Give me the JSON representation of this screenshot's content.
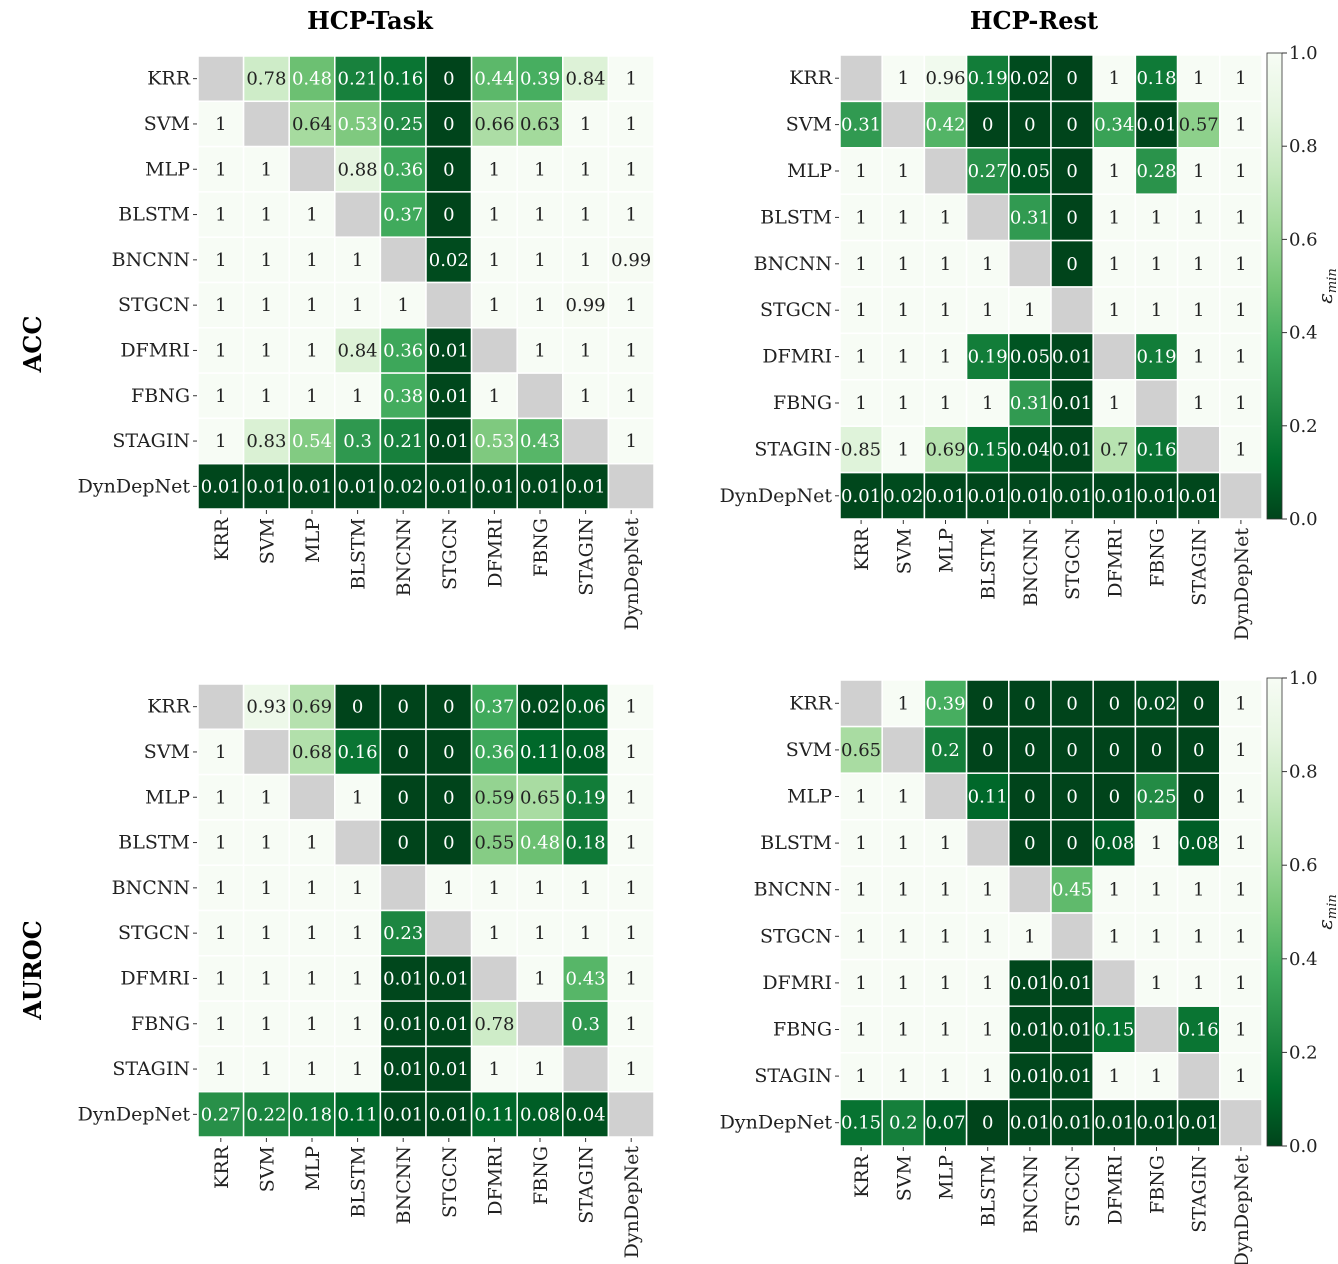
{
  "column_titles": [
    "HCP-Task",
    "HCP-Rest"
  ],
  "row_titles": [
    "ACC",
    "AUROC"
  ],
  "colorbar": {
    "label": "ε",
    "label_subscript": "min",
    "ticks": [
      "0.0",
      "0.2",
      "0.4",
      "0.6",
      "0.8",
      "1.0"
    ],
    "low_color": "#00441b",
    "high_color": "#f7fcf5"
  },
  "diagonal_color": "#d0d0d0",
  "chart_data": [
    {
      "type": "heatmap",
      "title": "",
      "column": "HCP-Task",
      "row": "ACC",
      "labels": [
        "KRR",
        "SVM",
        "MLP",
        "BLSTM",
        "BNCNN",
        "STGCN",
        "DFMRI",
        "FBNG",
        "STAGIN",
        "DynDepNet"
      ],
      "zlim": [
        0,
        1
      ],
      "values": [
        [
          null,
          0.78,
          0.48,
          0.21,
          0.16,
          0,
          0.44,
          0.39,
          0.84,
          1
        ],
        [
          1,
          null,
          0.64,
          0.53,
          0.25,
          0,
          0.66,
          0.63,
          1,
          1
        ],
        [
          1,
          1,
          null,
          0.88,
          0.36,
          0,
          1,
          1,
          1,
          1
        ],
        [
          1,
          1,
          1,
          null,
          0.37,
          0,
          1,
          1,
          1,
          1
        ],
        [
          1,
          1,
          1,
          1,
          null,
          0.02,
          1,
          1,
          1,
          0.99
        ],
        [
          1,
          1,
          1,
          1,
          1,
          null,
          1,
          1,
          0.99,
          1
        ],
        [
          1,
          1,
          1,
          0.84,
          0.36,
          0.01,
          null,
          1,
          1,
          1
        ],
        [
          1,
          1,
          1,
          1,
          0.38,
          0.01,
          1,
          null,
          1,
          1
        ],
        [
          1,
          0.83,
          0.54,
          0.3,
          0.21,
          0.01,
          0.53,
          0.43,
          null,
          1
        ],
        [
          0.01,
          0.01,
          0.01,
          0.01,
          0.02,
          0.01,
          0.01,
          0.01,
          0.01,
          null
        ]
      ]
    },
    {
      "type": "heatmap",
      "title": "",
      "column": "HCP-Rest",
      "row": "ACC",
      "labels": [
        "KRR",
        "SVM",
        "MLP",
        "BLSTM",
        "BNCNN",
        "STGCN",
        "DFMRI",
        "FBNG",
        "STAGIN",
        "DynDepNet"
      ],
      "zlim": [
        0,
        1
      ],
      "colorbar": true,
      "values": [
        [
          null,
          1,
          0.96,
          0.19,
          0.02,
          0,
          1,
          0.18,
          1,
          1
        ],
        [
          0.31,
          null,
          0.42,
          0,
          0,
          0,
          0.34,
          0.01,
          0.57,
          1
        ],
        [
          1,
          1,
          null,
          0.27,
          0.05,
          0,
          1,
          0.28,
          1,
          1
        ],
        [
          1,
          1,
          1,
          null,
          0.31,
          0,
          1,
          1,
          1,
          1
        ],
        [
          1,
          1,
          1,
          1,
          null,
          0,
          1,
          1,
          1,
          1
        ],
        [
          1,
          1,
          1,
          1,
          1,
          null,
          1,
          1,
          1,
          1
        ],
        [
          1,
          1,
          1,
          0.19,
          0.05,
          0.01,
          null,
          0.19,
          1,
          1
        ],
        [
          1,
          1,
          1,
          1,
          0.31,
          0.01,
          1,
          null,
          1,
          1
        ],
        [
          0.85,
          1,
          0.69,
          0.15,
          0.04,
          0.01,
          0.7,
          0.16,
          null,
          1
        ],
        [
          0.01,
          0.02,
          0.01,
          0.01,
          0.01,
          0.01,
          0.01,
          0.01,
          0.01,
          null
        ]
      ]
    },
    {
      "type": "heatmap",
      "title": "",
      "column": "HCP-Task",
      "row": "AUROC",
      "labels": [
        "KRR",
        "SVM",
        "MLP",
        "BLSTM",
        "BNCNN",
        "STGCN",
        "DFMRI",
        "FBNG",
        "STAGIN",
        "DynDepNet"
      ],
      "zlim": [
        0,
        1
      ],
      "values": [
        [
          null,
          0.93,
          0.69,
          0,
          0,
          0,
          0.37,
          0.02,
          0.06,
          1
        ],
        [
          1,
          null,
          0.68,
          0.16,
          0,
          0,
          0.36,
          0.11,
          0.08,
          1
        ],
        [
          1,
          1,
          null,
          1,
          0,
          0,
          0.59,
          0.65,
          0.19,
          1
        ],
        [
          1,
          1,
          1,
          null,
          0,
          0,
          0.55,
          0.48,
          0.18,
          1
        ],
        [
          1,
          1,
          1,
          1,
          null,
          1,
          1,
          1,
          1,
          1
        ],
        [
          1,
          1,
          1,
          1,
          0.23,
          null,
          1,
          1,
          1,
          1
        ],
        [
          1,
          1,
          1,
          1,
          0.01,
          0.01,
          null,
          1,
          0.43,
          1
        ],
        [
          1,
          1,
          1,
          1,
          0.01,
          0.01,
          0.78,
          null,
          0.3,
          1
        ],
        [
          1,
          1,
          1,
          1,
          0.01,
          0.01,
          1,
          1,
          null,
          1
        ],
        [
          0.27,
          0.22,
          0.18,
          0.11,
          0.01,
          0.01,
          0.11,
          0.08,
          0.04,
          null
        ]
      ]
    },
    {
      "type": "heatmap",
      "title": "",
      "column": "HCP-Rest",
      "row": "AUROC",
      "labels": [
        "KRR",
        "SVM",
        "MLP",
        "BLSTM",
        "BNCNN",
        "STGCN",
        "DFMRI",
        "FBNG",
        "STAGIN",
        "DynDepNet"
      ],
      "zlim": [
        0,
        1
      ],
      "colorbar": true,
      "values": [
        [
          null,
          1,
          0.39,
          0,
          0,
          0,
          0,
          0.02,
          0,
          1
        ],
        [
          0.65,
          null,
          0.2,
          0,
          0,
          0,
          0,
          0,
          0,
          1
        ],
        [
          1,
          1,
          null,
          0.11,
          0,
          0,
          0,
          0.25,
          0,
          1
        ],
        [
          1,
          1,
          1,
          null,
          0,
          0,
          0.08,
          1,
          0.08,
          1
        ],
        [
          1,
          1,
          1,
          1,
          null,
          0.45,
          1,
          1,
          1,
          1
        ],
        [
          1,
          1,
          1,
          1,
          1,
          null,
          1,
          1,
          1,
          1
        ],
        [
          1,
          1,
          1,
          1,
          0.01,
          0.01,
          null,
          1,
          1,
          1
        ],
        [
          1,
          1,
          1,
          1,
          0.01,
          0.01,
          0.15,
          null,
          0.16,
          1
        ],
        [
          1,
          1,
          1,
          1,
          0.01,
          0.01,
          1,
          1,
          null,
          1
        ],
        [
          0.15,
          0.2,
          0.07,
          0,
          0.01,
          0.01,
          0.01,
          0.01,
          0.01,
          null
        ]
      ]
    }
  ]
}
